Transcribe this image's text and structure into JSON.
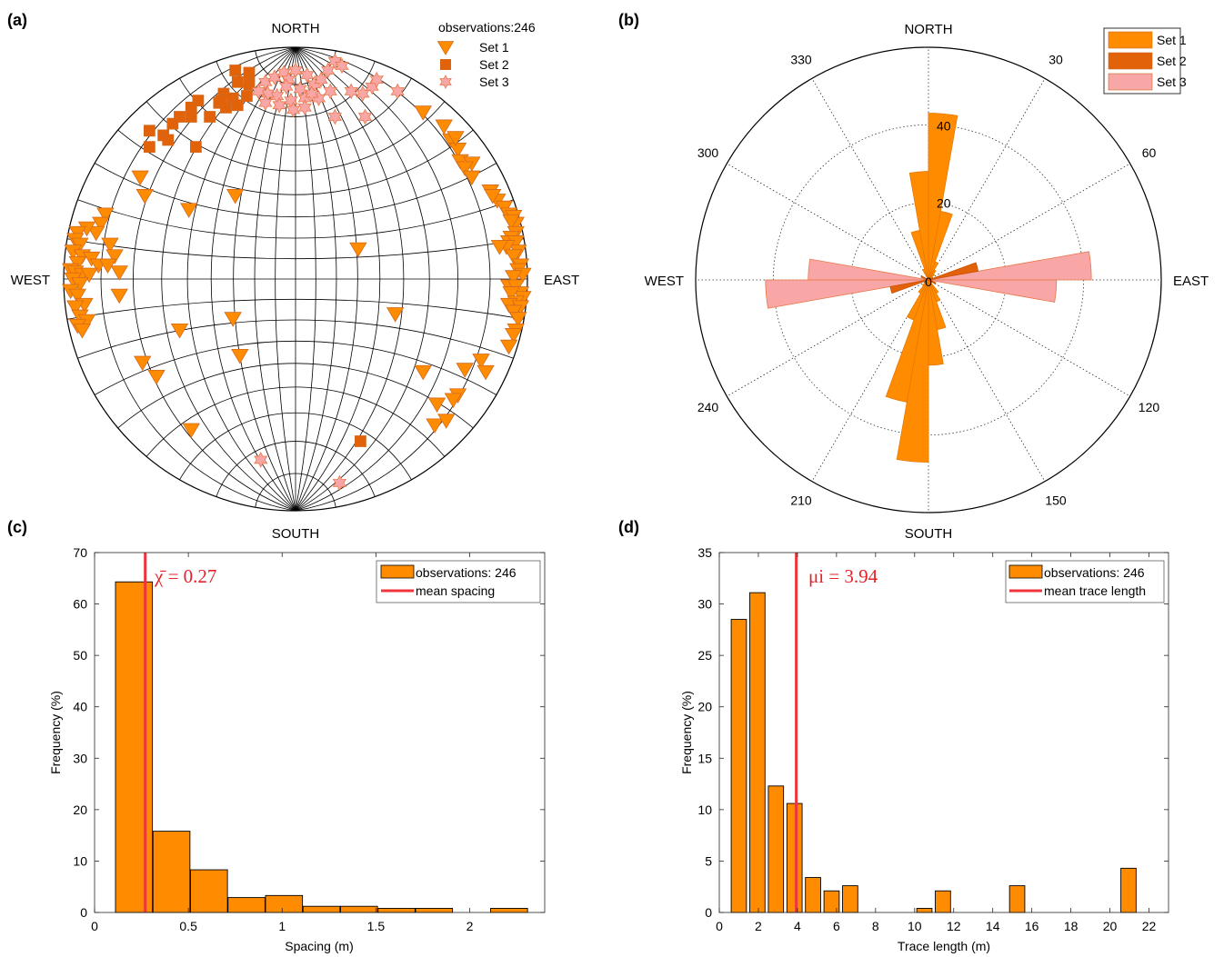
{
  "colors": {
    "set1": "#ff8c00",
    "set2": "#e2620a",
    "set3": "#f9a6a6",
    "set3_edge": "#e8784a",
    "edge": "#d2691e",
    "mean_line": "#f0343c",
    "bar_fill": "#ff8c00"
  },
  "chart_data": [
    {
      "panel": "(a)",
      "type": "scatter",
      "subtype": "stereonet",
      "labels": {
        "north": "NORTH",
        "south": "SOUTH",
        "east": "EAST",
        "west": "WEST"
      },
      "observations_label": "observations:246",
      "legend": [
        "Set 1",
        "Set 2",
        "Set 3"
      ],
      "legend_placement": "top-right",
      "coordinate_note": "points as normalized projection coords (x east, y north, radius 1)",
      "series": [
        {
          "name": "Set 1",
          "marker": "triangle-down",
          "points": [
            [
              0.55,
              0.72
            ],
            [
              0.64,
              0.66
            ],
            [
              0.67,
              0.6
            ],
            [
              0.7,
              0.56
            ],
            [
              0.69,
              0.61
            ],
            [
              0.71,
              0.51
            ],
            [
              0.76,
              0.5
            ],
            [
              0.73,
              0.48
            ],
            [
              0.76,
              0.44
            ],
            [
              0.84,
              0.38
            ],
            [
              0.87,
              0.34
            ],
            [
              0.85,
              0.36
            ],
            [
              0.9,
              0.31
            ],
            [
              0.92,
              0.28
            ],
            [
              0.94,
              0.27
            ],
            [
              0.95,
              0.24
            ],
            [
              0.93,
              0.25
            ],
            [
              0.95,
              0.2
            ],
            [
              0.93,
              0.18
            ],
            [
              0.92,
              0.16
            ],
            [
              0.95,
              0.16
            ],
            [
              0.96,
              0.12
            ],
            [
              0.91,
              0.14
            ],
            [
              0.88,
              0.14
            ],
            [
              0.94,
              0.1
            ],
            [
              0.97,
              0.06
            ],
            [
              0.96,
              0.04
            ],
            [
              0.98,
              0.02
            ],
            [
              0.94,
              0.01
            ],
            [
              0.92,
              -0.03
            ],
            [
              0.95,
              -0.03
            ],
            [
              0.97,
              -0.06
            ],
            [
              0.98,
              -0.08
            ],
            [
              0.93,
              -0.06
            ],
            [
              0.95,
              -0.1
            ],
            [
              0.92,
              -0.11
            ],
            [
              0.97,
              -0.12
            ],
            [
              0.94,
              -0.14
            ],
            [
              0.96,
              -0.17
            ],
            [
              0.95,
              -0.22
            ],
            [
              0.94,
              -0.24
            ],
            [
              0.8,
              -0.35
            ],
            [
              0.82,
              -0.4
            ],
            [
              0.73,
              -0.39
            ],
            [
              0.7,
              -0.5
            ],
            [
              0.68,
              -0.52
            ],
            [
              0.6,
              -0.63
            ],
            [
              0.65,
              -0.61
            ],
            [
              0.61,
              -0.54
            ],
            [
              0.92,
              -0.29
            ],
            [
              0.55,
              -0.4
            ],
            [
              0.43,
              -0.15
            ],
            [
              0.27,
              0.13
            ],
            [
              -0.27,
              -0.17
            ],
            [
              -0.24,
              -0.33
            ],
            [
              -0.5,
              -0.22
            ],
            [
              -0.46,
              0.3
            ],
            [
              -0.26,
              0.36
            ],
            [
              -0.67,
              0.44
            ],
            [
              -0.65,
              0.36
            ],
            [
              -0.66,
              -0.36
            ],
            [
              -0.6,
              -0.42
            ],
            [
              -0.45,
              -0.65
            ],
            [
              -0.82,
              0.28
            ],
            [
              -0.84,
              0.24
            ],
            [
              -0.86,
              0.2
            ],
            [
              -0.9,
              0.22
            ],
            [
              -0.94,
              0.2
            ],
            [
              -0.95,
              0.17
            ],
            [
              -0.93,
              0.15
            ],
            [
              -0.96,
              0.12
            ],
            [
              -0.92,
              0.1
            ],
            [
              -0.88,
              0.09
            ],
            [
              -0.85,
              0.06
            ],
            [
              -0.94,
              0.07
            ],
            [
              -0.97,
              0.04
            ],
            [
              -0.95,
              0.03
            ],
            [
              -0.92,
              0.02
            ],
            [
              -0.89,
              0.02
            ],
            [
              -0.96,
              0.0
            ],
            [
              -0.93,
              -0.02
            ],
            [
              -0.97,
              -0.05
            ],
            [
              -0.94,
              -0.07
            ],
            [
              -0.91,
              -0.11
            ],
            [
              -0.95,
              -0.12
            ],
            [
              -0.93,
              -0.16
            ],
            [
              -0.9,
              -0.18
            ],
            [
              -0.94,
              -0.2
            ],
            [
              -0.92,
              -0.22
            ],
            [
              -0.8,
              0.15
            ],
            [
              -0.78,
              0.1
            ],
            [
              -0.76,
              0.03
            ],
            [
              -0.81,
              0.06
            ],
            [
              -0.76,
              -0.07
            ]
          ]
        },
        {
          "name": "Set 2",
          "marker": "square",
          "points": [
            [
              -0.26,
              0.9
            ],
            [
              -0.25,
              0.85
            ],
            [
              -0.2,
              0.89
            ],
            [
              -0.2,
              0.84
            ],
            [
              -0.21,
              0.79
            ],
            [
              -0.27,
              0.78
            ],
            [
              -0.31,
              0.8
            ],
            [
              -0.33,
              0.76
            ],
            [
              -0.3,
              0.74
            ],
            [
              -0.25,
              0.75
            ],
            [
              -0.42,
              0.77
            ],
            [
              -0.45,
              0.74
            ],
            [
              -0.5,
              0.7
            ],
            [
              -0.53,
              0.67
            ],
            [
              -0.45,
              0.7
            ],
            [
              -0.37,
              0.7
            ],
            [
              -0.57,
              0.62
            ],
            [
              -0.55,
              0.6
            ],
            [
              -0.63,
              0.64
            ],
            [
              -0.63,
              0.57
            ],
            [
              -0.43,
              0.57
            ],
            [
              -0.32,
              0.77
            ],
            [
              0.28,
              -0.7
            ]
          ]
        },
        {
          "name": "Set 3",
          "marker": "hexagram",
          "points": [
            [
              -0.13,
              0.85
            ],
            [
              -0.09,
              0.87
            ],
            [
              -0.05,
              0.89
            ],
            [
              -0.03,
              0.86
            ],
            [
              0.0,
              0.9
            ],
            [
              0.05,
              0.88
            ],
            [
              0.08,
              0.84
            ],
            [
              0.11,
              0.86
            ],
            [
              0.14,
              0.9
            ],
            [
              0.17,
              0.94
            ],
            [
              0.2,
              0.92
            ],
            [
              0.15,
              0.81
            ],
            [
              0.1,
              0.78
            ],
            [
              0.04,
              0.78
            ],
            [
              -0.02,
              0.77
            ],
            [
              -0.08,
              0.79
            ],
            [
              -0.12,
              0.8
            ],
            [
              -0.16,
              0.81
            ],
            [
              -0.13,
              0.76
            ],
            [
              -0.07,
              0.75
            ],
            [
              -0.01,
              0.73
            ],
            [
              0.04,
              0.74
            ],
            [
              0.02,
              0.82
            ],
            [
              -0.04,
              0.83
            ],
            [
              0.07,
              0.8
            ],
            [
              0.24,
              0.81
            ],
            [
              0.29,
              0.8
            ],
            [
              0.33,
              0.83
            ],
            [
              0.35,
              0.86
            ],
            [
              0.44,
              0.81
            ],
            [
              0.17,
              0.7
            ],
            [
              0.3,
              0.7
            ],
            [
              -0.15,
              -0.78
            ],
            [
              0.19,
              -0.88
            ]
          ]
        }
      ]
    },
    {
      "panel": "(b)",
      "type": "bar",
      "subtype": "polar-rose",
      "labels": {
        "north": "NORTH",
        "south": "SOUTH",
        "east": "EAST",
        "west": "WEST"
      },
      "angle_ticks": [
        "30",
        "60",
        "120",
        "150",
        "210",
        "240",
        "300",
        "330"
      ],
      "angle_tick_values": [
        30,
        60,
        120,
        150,
        210,
        240,
        300,
        330
      ],
      "radial_ticks": [
        "0",
        "20",
        "40"
      ],
      "radial_tick_values": [
        0,
        20,
        40
      ],
      "rlim": [
        0,
        60
      ],
      "legend": [
        "Set 1",
        "Set 2",
        "Set 3"
      ],
      "legend_placement": "top-right",
      "bin_width_deg": 10,
      "series": [
        {
          "name": "Set 1",
          "bins": [
            [
              0,
              43
            ],
            [
              10,
              18
            ],
            [
              20,
              5
            ],
            [
              30,
              3
            ],
            [
              40,
              2
            ],
            [
              60,
              1
            ],
            [
              120,
              1
            ],
            [
              140,
              4
            ],
            [
              150,
              6
            ],
            [
              160,
              13
            ],
            [
              170,
              22
            ],
            [
              180,
              47
            ],
            [
              190,
              32
            ],
            [
              200,
              11
            ],
            [
              210,
              4
            ],
            [
              220,
              2
            ],
            [
              330,
              3
            ],
            [
              340,
              13
            ],
            [
              350,
              28
            ]
          ]
        },
        {
          "name": "Set 2",
          "bins": [
            [
              70,
              13
            ],
            [
              250,
              10
            ],
            [
              110,
              2
            ],
            [
              290,
              2
            ]
          ]
        },
        {
          "name": "Set 3",
          "bins": [
            [
              80,
              42
            ],
            [
              90,
              33
            ],
            [
              260,
              42
            ],
            [
              270,
              31
            ]
          ]
        }
      ]
    },
    {
      "panel": "(c)",
      "type": "bar",
      "subtype": "histogram",
      "xlabel": "Spacing (m)",
      "ylabel": "Frequency (%)",
      "xlim": [
        0,
        2.4
      ],
      "ylim": [
        0,
        70
      ],
      "xticks": [
        "0",
        "0.5",
        "1",
        "1.5",
        "2"
      ],
      "xtick_values": [
        0,
        0.5,
        1,
        1.5,
        2
      ],
      "yticks": [
        "0",
        "10",
        "20",
        "30",
        "40",
        "50",
        "60",
        "70"
      ],
      "ytick_values": [
        0,
        10,
        20,
        30,
        40,
        50,
        60,
        70
      ],
      "bin_width": 0.197,
      "bin_centers": [
        0.21,
        0.41,
        0.61,
        0.81,
        1.01,
        1.21,
        1.41,
        1.61,
        1.81,
        2.21
      ],
      "values": [
        64.3,
        15.8,
        8.3,
        2.9,
        3.3,
        1.2,
        1.2,
        0.8,
        0.8,
        0.8
      ],
      "mean_line_x": 0.27,
      "annotation": "χ̄ = 0.27",
      "legend": [
        "observations: 246",
        "mean spacing"
      ],
      "legend_placement": "top-right"
    },
    {
      "panel": "(d)",
      "type": "bar",
      "subtype": "histogram",
      "xlabel": "Trace length (m)",
      "ylabel": "Frequency (%)",
      "xlim": [
        0,
        23
      ],
      "ylim": [
        0,
        35
      ],
      "xticks": [
        "0",
        "2",
        "4",
        "6",
        "8",
        "10",
        "12",
        "14",
        "16",
        "18",
        "20",
        "22"
      ],
      "xtick_values": [
        0,
        2,
        4,
        6,
        8,
        10,
        12,
        14,
        16,
        18,
        20,
        22
      ],
      "yticks": [
        "0",
        "5",
        "10",
        "15",
        "20",
        "25",
        "30",
        "35"
      ],
      "ytick_values": [
        0,
        5,
        10,
        15,
        20,
        25,
        30,
        35
      ],
      "bin_width": 0.78,
      "bin_centers": [
        1.0,
        1.95,
        2.9,
        3.85,
        4.8,
        5.75,
        6.7,
        10.5,
        11.45,
        15.25,
        20.95
      ],
      "values": [
        28.5,
        31.1,
        12.3,
        10.6,
        3.4,
        2.1,
        2.6,
        0.4,
        2.1,
        2.6,
        4.3
      ],
      "mean_line_x": 3.94,
      "annotation": "μi = 3.94",
      "legend": [
        "observations: 246",
        "mean trace length"
      ],
      "legend_placement": "top-right"
    }
  ]
}
